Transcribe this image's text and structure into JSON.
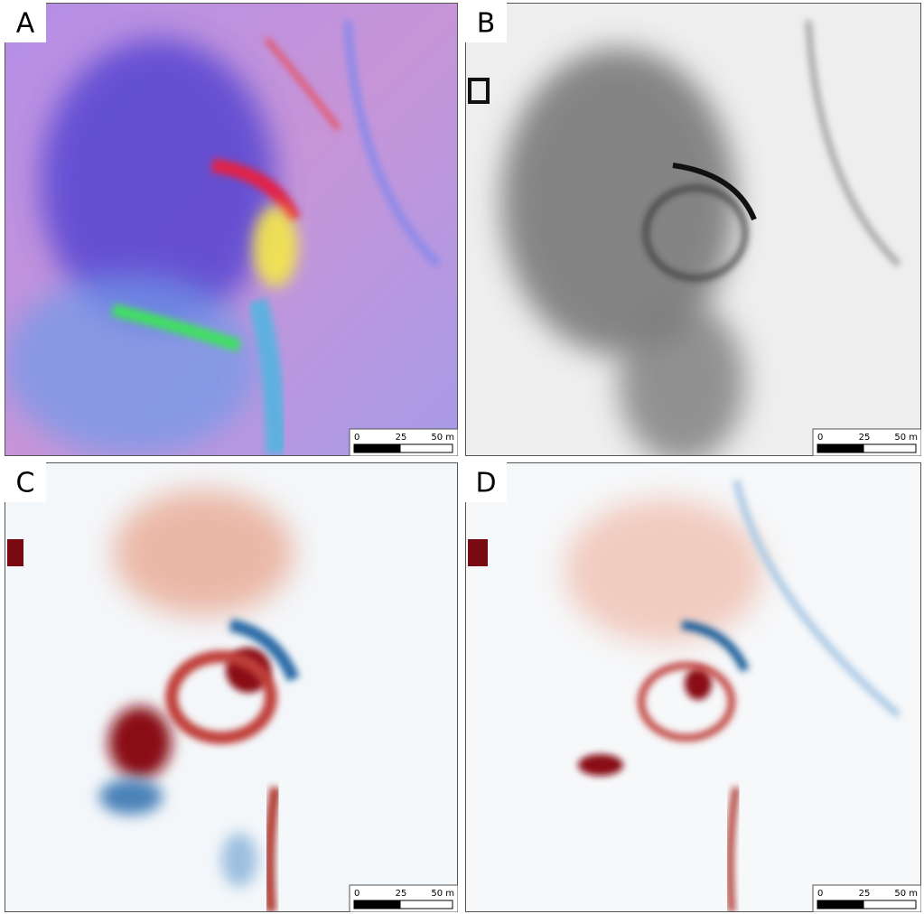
{
  "panels": [
    {
      "label": "A",
      "scale_bar": {
        "ticks": [
          "0",
          "25",
          "50 m"
        ]
      }
    },
    {
      "label": "B",
      "scale_bar": {
        "ticks": [
          "0",
          "25",
          "50 m"
        ]
      }
    },
    {
      "label": "C",
      "scale_bar": {
        "ticks": [
          "0",
          "25",
          "50 m"
        ]
      }
    },
    {
      "label": "D",
      "scale_bar": {
        "ticks": [
          "0",
          "25",
          "50 m"
        ]
      }
    }
  ]
}
